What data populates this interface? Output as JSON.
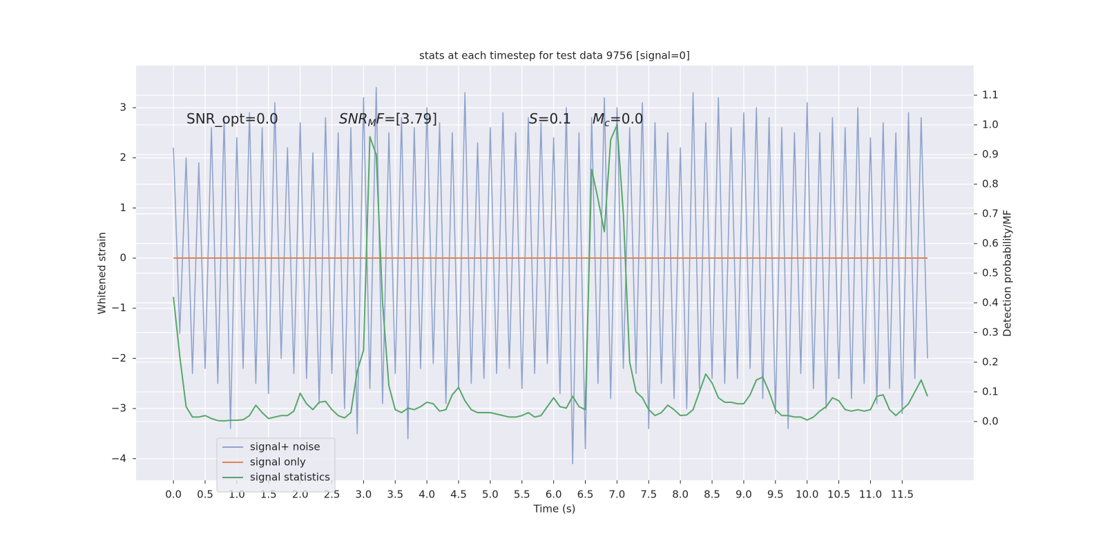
{
  "chart_data": {
    "type": "line",
    "title": "stats at each timestep for test data 9756 [signal=0]",
    "xlabel": "Time (s)",
    "ylabel": "Whitened strain",
    "y2label": "Detection probability/MF",
    "x": [
      0.0,
      0.1,
      0.2,
      0.3,
      0.4,
      0.5,
      0.6,
      0.7,
      0.8,
      0.9,
      1.0,
      1.1,
      1.2,
      1.3,
      1.4,
      1.5,
      1.6,
      1.7,
      1.8,
      1.9,
      2.0,
      2.1,
      2.2,
      2.3,
      2.4,
      2.5,
      2.6,
      2.7,
      2.8,
      2.9,
      3.0,
      3.1,
      3.2,
      3.3,
      3.4,
      3.5,
      3.6,
      3.7,
      3.8,
      3.9,
      4.0,
      4.1,
      4.2,
      4.3,
      4.4,
      4.5,
      4.6,
      4.7,
      4.8,
      4.9,
      5.0,
      5.1,
      5.2,
      5.3,
      5.4,
      5.5,
      5.6,
      5.7,
      5.8,
      5.9,
      6.0,
      6.1,
      6.2,
      6.3,
      6.4,
      6.5,
      6.6,
      6.7,
      6.8,
      6.9,
      7.0,
      7.1,
      7.2,
      7.3,
      7.4,
      7.5,
      7.6,
      7.7,
      7.8,
      7.9,
      8.0,
      8.1,
      8.2,
      8.3,
      8.4,
      8.5,
      8.6,
      8.7,
      8.8,
      8.9,
      9.0,
      9.1,
      9.2,
      9.3,
      9.4,
      9.5,
      9.6,
      9.7,
      9.8,
      9.9,
      10.0,
      10.1,
      10.2,
      10.3,
      10.4,
      10.5,
      10.6,
      10.7,
      10.8,
      10.9,
      11.0,
      11.1,
      11.2,
      11.3,
      11.4,
      11.5,
      11.6,
      11.7,
      11.8,
      11.9
    ],
    "series": [
      {
        "name": "signal+ noise",
        "color": "#8fa4cd",
        "axis": "y",
        "values": [
          2.2,
          -1.5,
          2.0,
          -2.3,
          1.9,
          -2.2,
          2.6,
          -2.5,
          2.8,
          -3.4,
          2.4,
          -2.2,
          2.9,
          -2.5,
          2.6,
          -2.7,
          3.1,
          -2.0,
          2.2,
          -2.3,
          2.7,
          -2.4,
          2.1,
          -2.9,
          2.8,
          -2.3,
          2.5,
          -3.0,
          2.6,
          -3.5,
          3.2,
          -2.6,
          3.4,
          -2.9,
          2.5,
          -2.3,
          2.8,
          -3.6,
          2.6,
          -2.2,
          3.0,
          -2.1,
          2.7,
          -2.9,
          2.5,
          -2.6,
          3.3,
          -2.5,
          2.3,
          -2.4,
          2.6,
          -2.3,
          2.9,
          -2.2,
          2.5,
          -2.6,
          2.8,
          -2.3,
          2.7,
          -2.1,
          2.4,
          -2.7,
          3.0,
          -4.1,
          2.5,
          -3.8,
          2.8,
          -2.5,
          3.2,
          -2.8,
          3.0,
          -2.2,
          2.6,
          -2.3,
          3.1,
          -3.4,
          2.7,
          -2.5,
          2.5,
          -2.8,
          2.2,
          -3.0,
          3.3,
          -2.6,
          2.7,
          -2.4,
          3.2,
          -2.5,
          2.6,
          -2.4,
          2.9,
          -2.2,
          3.0,
          -2.8,
          2.8,
          -3.1,
          2.6,
          -3.4,
          2.5,
          -2.3,
          3.1,
          -2.6,
          2.5,
          -3.0,
          2.8,
          -2.4,
          2.6,
          -2.8,
          3.0,
          -2.5,
          2.4,
          -2.9,
          2.7,
          -2.6,
          2.5,
          -3.1,
          2.9,
          -2.4,
          2.8,
          -2.0
        ]
      },
      {
        "name": "signal only",
        "color": "#dd8452",
        "axis": "y",
        "values": [
          0,
          0,
          0,
          0,
          0,
          0,
          0,
          0,
          0,
          0,
          0,
          0,
          0,
          0,
          0,
          0,
          0,
          0,
          0,
          0,
          0,
          0,
          0,
          0,
          0,
          0,
          0,
          0,
          0,
          0,
          0,
          0,
          0,
          0,
          0,
          0,
          0,
          0,
          0,
          0,
          0,
          0,
          0,
          0,
          0,
          0,
          0,
          0,
          0,
          0,
          0,
          0,
          0,
          0,
          0,
          0,
          0,
          0,
          0,
          0,
          0,
          0,
          0,
          0,
          0,
          0,
          0,
          0,
          0,
          0,
          0,
          0,
          0,
          0,
          0,
          0,
          0,
          0,
          0,
          0,
          0,
          0,
          0,
          0,
          0,
          0,
          0,
          0,
          0,
          0,
          0,
          0,
          0,
          0,
          0,
          0,
          0,
          0,
          0,
          0,
          0,
          0,
          0,
          0,
          0,
          0,
          0,
          0,
          0,
          0,
          0,
          0,
          0,
          0,
          0,
          0,
          0,
          0,
          0,
          0
        ]
      },
      {
        "name": "signal statistics",
        "color": "#55a868",
        "axis": "y2",
        "values": [
          0.42,
          0.22,
          0.05,
          0.015,
          0.015,
          0.02,
          0.01,
          0.003,
          0.002,
          0.004,
          0.004,
          0.006,
          0.02,
          0.055,
          0.03,
          0.01,
          0.015,
          0.02,
          0.02,
          0.035,
          0.095,
          0.06,
          0.04,
          0.065,
          0.068,
          0.04,
          0.02,
          0.012,
          0.03,
          0.17,
          0.24,
          0.96,
          0.9,
          0.4,
          0.12,
          0.04,
          0.03,
          0.045,
          0.04,
          0.05,
          0.065,
          0.06,
          0.035,
          0.04,
          0.09,
          0.115,
          0.07,
          0.04,
          0.03,
          0.03,
          0.03,
          0.025,
          0.02,
          0.015,
          0.015,
          0.02,
          0.03,
          0.015,
          0.02,
          0.05,
          0.08,
          0.05,
          0.045,
          0.085,
          0.05,
          0.04,
          0.85,
          0.75,
          0.64,
          0.95,
          1.0,
          0.7,
          0.2,
          0.1,
          0.08,
          0.04,
          0.02,
          0.03,
          0.055,
          0.04,
          0.02,
          0.022,
          0.04,
          0.1,
          0.16,
          0.13,
          0.08,
          0.065,
          0.065,
          0.06,
          0.06,
          0.09,
          0.14,
          0.15,
          0.1,
          0.04,
          0.02,
          0.02,
          0.015,
          0.015,
          0.005,
          0.015,
          0.035,
          0.05,
          0.08,
          0.07,
          0.04,
          0.035,
          0.04,
          0.035,
          0.04,
          0.085,
          0.09,
          0.04,
          0.02,
          0.04,
          0.06,
          0.1,
          0.14,
          0.085
        ]
      }
    ],
    "xlim": [
      -0.59,
      12.63
    ],
    "ylim": [
      -4.43,
      3.84
    ],
    "y2lim": [
      -0.198,
      1.2
    ],
    "xticks": [
      {
        "value": 0,
        "label": "0.0"
      },
      0.5,
      {
        "value": 1,
        "label": "1.0"
      },
      1.5,
      {
        "value": 2,
        "label": "2.0"
      },
      2.5,
      {
        "value": 3,
        "label": "3.0"
      },
      3.5,
      {
        "value": 4,
        "label": "4.0"
      },
      4.5,
      {
        "value": 5,
        "label": "5.0"
      },
      5.5,
      {
        "value": 6,
        "label": "6.0"
      },
      6.5,
      {
        "value": 7,
        "label": "7.0"
      },
      7.5,
      {
        "value": 8,
        "label": "8.0"
      },
      8.5,
      {
        "value": 9,
        "label": "9.0"
      },
      9.5,
      {
        "value": 10,
        "label": "10.0"
      },
      10.5,
      {
        "value": 11,
        "label": "11.0"
      },
      11.5
    ],
    "yticks": [
      {
        "value": -4,
        "label": "−4"
      },
      {
        "value": -3,
        "label": "−3"
      },
      {
        "value": -2,
        "label": "−2"
      },
      {
        "value": -1,
        "label": "−1"
      },
      0,
      1,
      2,
      3
    ],
    "y2ticks": [
      {
        "value": 0,
        "label": "0.0"
      },
      0.1,
      0.2,
      0.3,
      0.4,
      0.5,
      0.6,
      0.7,
      0.8,
      0.9,
      {
        "value": 1,
        "label": "1.0"
      },
      1.1
    ],
    "grid": true,
    "legend": "lower left",
    "annotations": [
      {
        "parts": [
          {
            "text": "SNR_opt=0.0"
          }
        ]
      },
      {
        "parts": [
          {
            "text": "SNR",
            "style": "italic"
          },
          {
            "text": "M",
            "style": "sub"
          },
          {
            "text": "F",
            "style": "italic"
          },
          {
            "text": "=[3.79]"
          }
        ]
      },
      {
        "parts": [
          {
            "text": "S",
            "style": "italic"
          },
          {
            "text": "=0.1"
          }
        ]
      },
      {
        "parts": [
          {
            "text": "M",
            "style": "italic"
          },
          {
            "text": "c",
            "style": "sub"
          },
          {
            "text": "=0.0"
          }
        ]
      }
    ]
  }
}
